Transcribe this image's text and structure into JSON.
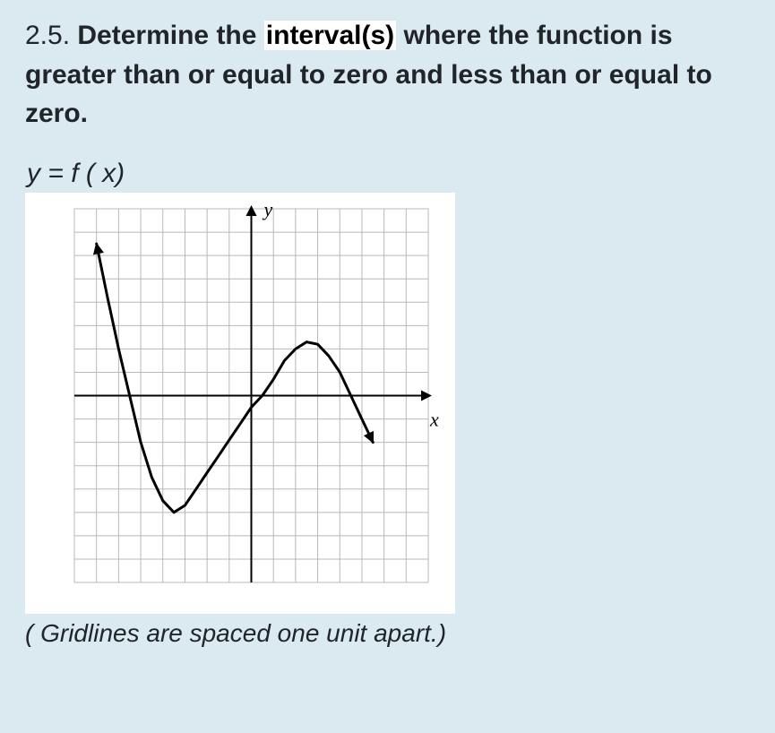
{
  "page": {
    "background_color": "#dbeaf0",
    "text_color": "#212529"
  },
  "question": {
    "number": "2.5.",
    "prefix": "Determine the ",
    "highlight_word": "interval(s)",
    "suffix": " where the function is greater than or equal to zero and less than or equal to zero."
  },
  "equation": {
    "text": "y =  f ( x)"
  },
  "chart": {
    "type": "line",
    "axis_labels": {
      "x": "x",
      "y": "y"
    },
    "xlim": [
      -8,
      8
    ],
    "ylim": [
      -8,
      8
    ],
    "xtick_step": 1,
    "ytick_step": 1,
    "grid_color": "#b8b8b8",
    "axis_color": "#000000",
    "background_color": "#ffffff",
    "curve_color": "#000000",
    "curve_width": 3,
    "arrow_size": 8,
    "curve_points": [
      [
        -7.0,
        6.5
      ],
      [
        -6.5,
        4.2
      ],
      [
        -6.0,
        2.0
      ],
      [
        -5.5,
        0.0
      ],
      [
        -5.0,
        -2.0
      ],
      [
        -4.5,
        -3.5
      ],
      [
        -4.0,
        -4.5
      ],
      [
        -3.5,
        -5.0
      ],
      [
        -3.0,
        -4.7
      ],
      [
        -2.5,
        -4.0
      ],
      [
        -2.0,
        -3.3
      ],
      [
        -1.5,
        -2.6
      ],
      [
        -1.0,
        -1.9
      ],
      [
        -0.5,
        -1.2
      ],
      [
        0.0,
        -0.5
      ],
      [
        0.5,
        0.0
      ],
      [
        1.0,
        0.7
      ],
      [
        1.5,
        1.5
      ],
      [
        2.0,
        2.0
      ],
      [
        2.5,
        2.3
      ],
      [
        3.0,
        2.2
      ],
      [
        3.5,
        1.7
      ],
      [
        4.0,
        1.0
      ],
      [
        4.5,
        0.0
      ],
      [
        5.0,
        -1.0
      ],
      [
        5.5,
        -2.0
      ]
    ],
    "curve_start_arrow": true,
    "curve_end_arrow": true
  },
  "footnote": {
    "text": "( Gridlines are spaced one unit apart.)"
  }
}
